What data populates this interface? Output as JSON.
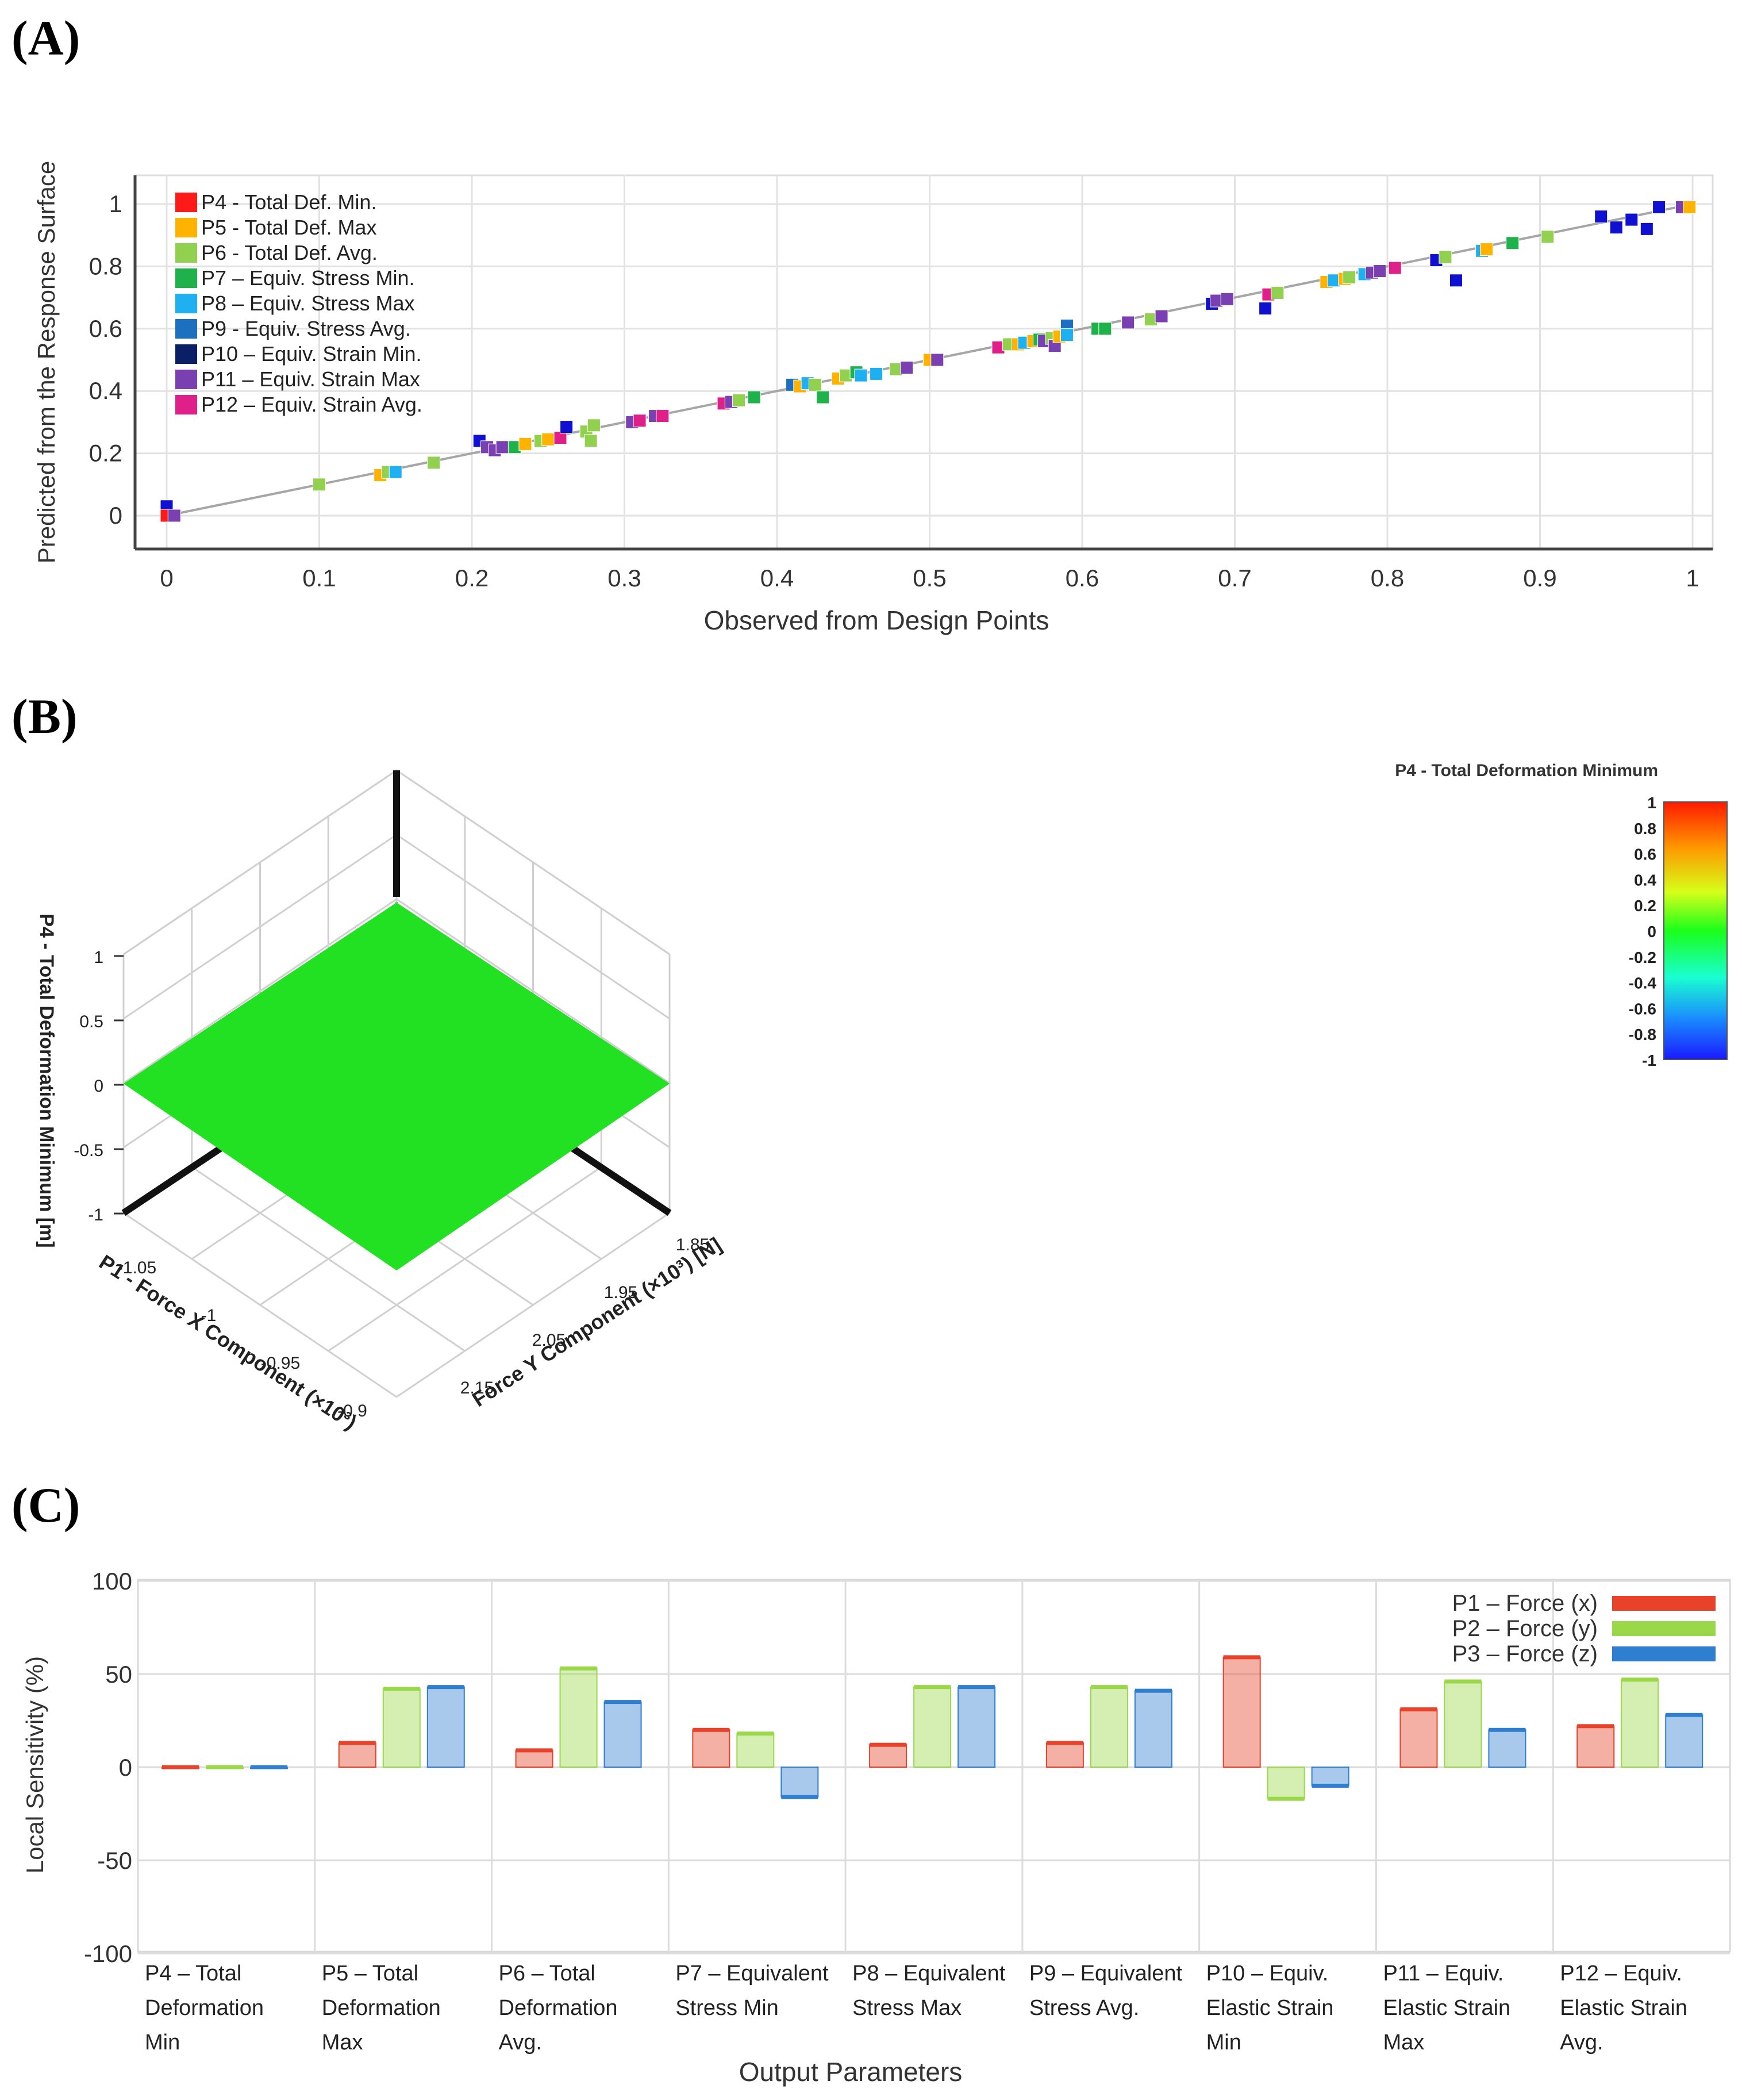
{
  "panels": {
    "a": "(A)",
    "b": "(B)",
    "c": "(C)"
  },
  "colors": {
    "P4": "#ff1a1a",
    "P5": "#ffb300",
    "P6": "#92d050",
    "P7": "#1fb24a",
    "P8": "#1eb0f0",
    "P9": "#1d6fbf",
    "P10": "#0a1f66",
    "P11": "#7a3fb0",
    "P12": "#e0208a",
    "blue_marker": "#1010d0",
    "c_red": "#e8422a",
    "c_green": "#9ad84a",
    "c_blue": "#2f7fd0",
    "surface": "#22e022"
  },
  "chart_data": [
    {
      "type": "scatter",
      "title": "",
      "xlabel": "Observed from Design Points",
      "ylabel": "Predicted from the Response Surface",
      "xlim": [
        0,
        1
      ],
      "ylim": [
        -0.1,
        1.06
      ],
      "x_ticks": [
        0,
        0.1,
        0.2,
        0.3,
        0.4,
        0.5,
        0.6,
        0.7,
        0.8,
        0.9,
        1
      ],
      "x_tick_labels": [
        "0",
        "0.1",
        "0.2",
        "0.3",
        "0.4",
        "0.5",
        "0.6",
        "0.7",
        "0.8",
        "0.9",
        "1"
      ],
      "y_ticks": [
        0,
        0.2,
        0.4,
        0.6,
        0.8,
        1
      ],
      "y_tick_labels": [
        "0",
        "0.2",
        "0.4",
        "0.6",
        "0.8",
        "1"
      ],
      "grid": true,
      "legend_position": "top-left",
      "legend": [
        {
          "key": "P4",
          "label": "P4 - Total Def. Min."
        },
        {
          "key": "P5",
          "label": "P5 - Total Def. Max"
        },
        {
          "key": "P6",
          "label": "P6 - Total Def. Avg."
        },
        {
          "key": "P7",
          "label": "P7 – Equiv. Stress Min."
        },
        {
          "key": "P8",
          "label": "P8 – Equiv. Stress Max"
        },
        {
          "key": "P9",
          "label": "P9 - Equiv. Stress Avg."
        },
        {
          "key": "P10",
          "label": "P10 – Equiv. Strain Min."
        },
        {
          "key": "P11",
          "label": "P11 – Equiv. Strain Max"
        },
        {
          "key": "P12",
          "label": "P12 – Equiv. Strain Avg."
        }
      ],
      "points": [
        {
          "x": 0.0,
          "y": 0.03,
          "c": "blue_marker"
        },
        {
          "x": 0.0,
          "y": 0.0,
          "c": "P4"
        },
        {
          "x": 0.005,
          "y": 0.0,
          "c": "P11"
        },
        {
          "x": 0.1,
          "y": 0.1,
          "c": "P6"
        },
        {
          "x": 0.14,
          "y": 0.13,
          "c": "P5"
        },
        {
          "x": 0.145,
          "y": 0.14,
          "c": "P6"
        },
        {
          "x": 0.15,
          "y": 0.14,
          "c": "P8"
        },
        {
          "x": 0.175,
          "y": 0.17,
          "c": "P6"
        },
        {
          "x": 0.205,
          "y": 0.24,
          "c": "blue_marker"
        },
        {
          "x": 0.21,
          "y": 0.22,
          "c": "P11"
        },
        {
          "x": 0.215,
          "y": 0.21,
          "c": "P11"
        },
        {
          "x": 0.22,
          "y": 0.22,
          "c": "P11"
        },
        {
          "x": 0.228,
          "y": 0.22,
          "c": "P7"
        },
        {
          "x": 0.235,
          "y": 0.23,
          "c": "P5"
        },
        {
          "x": 0.245,
          "y": 0.24,
          "c": "P6"
        },
        {
          "x": 0.25,
          "y": 0.245,
          "c": "P5"
        },
        {
          "x": 0.258,
          "y": 0.25,
          "c": "P12"
        },
        {
          "x": 0.262,
          "y": 0.285,
          "c": "blue_marker"
        },
        {
          "x": 0.275,
          "y": 0.27,
          "c": "P6"
        },
        {
          "x": 0.28,
          "y": 0.29,
          "c": "P6"
        },
        {
          "x": 0.278,
          "y": 0.24,
          "c": "P6"
        },
        {
          "x": 0.305,
          "y": 0.3,
          "c": "P11"
        },
        {
          "x": 0.31,
          "y": 0.305,
          "c": "P12"
        },
        {
          "x": 0.32,
          "y": 0.32,
          "c": "P11"
        },
        {
          "x": 0.325,
          "y": 0.32,
          "c": "P12"
        },
        {
          "x": 0.365,
          "y": 0.36,
          "c": "P12"
        },
        {
          "x": 0.37,
          "y": 0.365,
          "c": "P11"
        },
        {
          "x": 0.375,
          "y": 0.37,
          "c": "P6"
        },
        {
          "x": 0.385,
          "y": 0.38,
          "c": "P7"
        },
        {
          "x": 0.41,
          "y": 0.42,
          "c": "P9"
        },
        {
          "x": 0.415,
          "y": 0.415,
          "c": "P5"
        },
        {
          "x": 0.42,
          "y": 0.425,
          "c": "P8"
        },
        {
          "x": 0.425,
          "y": 0.42,
          "c": "P6"
        },
        {
          "x": 0.43,
          "y": 0.38,
          "c": "P7"
        },
        {
          "x": 0.44,
          "y": 0.44,
          "c": "P5"
        },
        {
          "x": 0.445,
          "y": 0.45,
          "c": "P6"
        },
        {
          "x": 0.452,
          "y": 0.46,
          "c": "P7"
        },
        {
          "x": 0.455,
          "y": 0.45,
          "c": "P8"
        },
        {
          "x": 0.465,
          "y": 0.455,
          "c": "P8"
        },
        {
          "x": 0.478,
          "y": 0.47,
          "c": "P6"
        },
        {
          "x": 0.485,
          "y": 0.475,
          "c": "P11"
        },
        {
          "x": 0.5,
          "y": 0.5,
          "c": "P5"
        },
        {
          "x": 0.505,
          "y": 0.5,
          "c": "P11"
        },
        {
          "x": 0.545,
          "y": 0.54,
          "c": "P12"
        },
        {
          "x": 0.552,
          "y": 0.55,
          "c": "P6"
        },
        {
          "x": 0.558,
          "y": 0.55,
          "c": "P5"
        },
        {
          "x": 0.562,
          "y": 0.555,
          "c": "P8"
        },
        {
          "x": 0.568,
          "y": 0.56,
          "c": "P5"
        },
        {
          "x": 0.572,
          "y": 0.565,
          "c": "P7"
        },
        {
          "x": 0.575,
          "y": 0.56,
          "c": "P11"
        },
        {
          "x": 0.58,
          "y": 0.57,
          "c": "P6"
        },
        {
          "x": 0.582,
          "y": 0.545,
          "c": "P11"
        },
        {
          "x": 0.585,
          "y": 0.575,
          "c": "P5"
        },
        {
          "x": 0.59,
          "y": 0.61,
          "c": "P9"
        },
        {
          "x": 0.59,
          "y": 0.58,
          "c": "P8"
        },
        {
          "x": 0.61,
          "y": 0.6,
          "c": "P7"
        },
        {
          "x": 0.615,
          "y": 0.6,
          "c": "P7"
        },
        {
          "x": 0.63,
          "y": 0.62,
          "c": "P11"
        },
        {
          "x": 0.645,
          "y": 0.63,
          "c": "P6"
        },
        {
          "x": 0.652,
          "y": 0.64,
          "c": "P11"
        },
        {
          "x": 0.685,
          "y": 0.68,
          "c": "blue_marker"
        },
        {
          "x": 0.688,
          "y": 0.69,
          "c": "P11"
        },
        {
          "x": 0.695,
          "y": 0.695,
          "c": "P11"
        },
        {
          "x": 0.72,
          "y": 0.665,
          "c": "blue_marker"
        },
        {
          "x": 0.722,
          "y": 0.71,
          "c": "P12"
        },
        {
          "x": 0.728,
          "y": 0.715,
          "c": "P6"
        },
        {
          "x": 0.76,
          "y": 0.75,
          "c": "P5"
        },
        {
          "x": 0.765,
          "y": 0.755,
          "c": "P8"
        },
        {
          "x": 0.772,
          "y": 0.76,
          "c": "P5"
        },
        {
          "x": 0.775,
          "y": 0.765,
          "c": "P6"
        },
        {
          "x": 0.785,
          "y": 0.775,
          "c": "P8"
        },
        {
          "x": 0.79,
          "y": 0.78,
          "c": "P11"
        },
        {
          "x": 0.795,
          "y": 0.785,
          "c": "P11"
        },
        {
          "x": 0.805,
          "y": 0.795,
          "c": "P12"
        },
        {
          "x": 0.832,
          "y": 0.82,
          "c": "blue_marker"
        },
        {
          "x": 0.838,
          "y": 0.83,
          "c": "P6"
        },
        {
          "x": 0.845,
          "y": 0.755,
          "c": "blue_marker"
        },
        {
          "x": 0.862,
          "y": 0.85,
          "c": "P8"
        },
        {
          "x": 0.865,
          "y": 0.855,
          "c": "P5"
        },
        {
          "x": 0.882,
          "y": 0.875,
          "c": "P7"
        },
        {
          "x": 0.905,
          "y": 0.895,
          "c": "P6"
        },
        {
          "x": 0.94,
          "y": 0.96,
          "c": "blue_marker"
        },
        {
          "x": 0.95,
          "y": 0.925,
          "c": "blue_marker"
        },
        {
          "x": 0.96,
          "y": 0.95,
          "c": "blue_marker"
        },
        {
          "x": 0.97,
          "y": 0.92,
          "c": "blue_marker"
        },
        {
          "x": 0.978,
          "y": 0.99,
          "c": "blue_marker"
        },
        {
          "x": 0.993,
          "y": 0.99,
          "c": "P11"
        },
        {
          "x": 0.998,
          "y": 0.99,
          "c": "P5"
        }
      ]
    },
    {
      "type": "surface",
      "title": "P4 - Total Deformation Minimum",
      "zlabel": "P4 - Total Deformation Minimum  [m]",
      "xlabel": "P1 - Force X Component (×10³)",
      "ylabel": "Force Y Component (×10³) [N]",
      "z_ticks": [
        "1",
        "0.5",
        "0",
        "-0.5",
        "-1"
      ],
      "x_ticks": [
        "-1.05",
        "-1",
        "-0.95",
        "-0.9"
      ],
      "y_ticks": [
        "1.85",
        "1.95",
        "2.05",
        "2.15"
      ],
      "colorbar_ticks": [
        "1",
        "0.8",
        "0.6",
        "0.4",
        "0.2",
        "0",
        "-0.2",
        "-0.4",
        "-0.6",
        "-0.8",
        "-1"
      ],
      "colorbar_range": [
        -1,
        1
      ],
      "surface_value": 0
    },
    {
      "type": "bar",
      "xlabel": "Output Parameters",
      "ylabel": "Local Sensitivity  (%)",
      "ylim": [
        -100,
        100
      ],
      "y_ticks": [
        100,
        50,
        0,
        -50,
        -100
      ],
      "y_tick_labels": [
        "100",
        "50",
        "0",
        "-50",
        "-100"
      ],
      "grid": true,
      "legend_position": "top-right",
      "categories": [
        [
          "P4 – Total",
          "Deformation",
          "Min"
        ],
        [
          "P5 – Total",
          "Deformation",
          "Max"
        ],
        [
          "P6 – Total",
          "Deformation",
          "Avg."
        ],
        [
          "P7 – Equivalent",
          "Stress Min"
        ],
        [
          "P8 – Equivalent",
          "Stress Max"
        ],
        [
          "P9 – Equivalent",
          "Stress Avg."
        ],
        [
          "P10 – Equiv.",
          "Elastic Strain",
          "Min"
        ],
        [
          "P11 – Equiv.",
          "Elastic Strain",
          "Max"
        ],
        [
          "P12 – Equiv.",
          "Elastic Strain",
          "Avg."
        ]
      ],
      "series": [
        {
          "name": "P1 – Force (x)",
          "color": "c_red",
          "values": [
            0,
            13,
            9,
            20,
            12,
            13,
            59,
            31,
            22
          ]
        },
        {
          "name": "P2 – Force (y)",
          "color": "c_green",
          "values": [
            0,
            42,
            53,
            18,
            43,
            43,
            -17,
            46,
            47
          ]
        },
        {
          "name": "P3 – Force (z)",
          "color": "c_blue",
          "values": [
            0,
            43,
            35,
            -16,
            43,
            41,
            -10,
            20,
            28
          ]
        }
      ]
    }
  ]
}
